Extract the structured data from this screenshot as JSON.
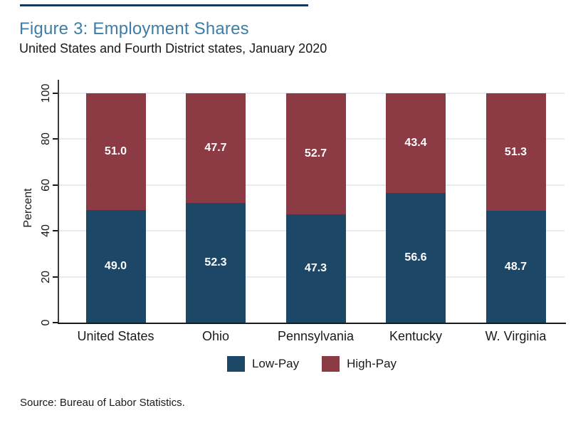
{
  "page": {
    "title": "Figure 3: Employment Shares",
    "subtitle": "United States and Fourth District states, January 2020",
    "source": "Source: Bureau of Labor Statistics.",
    "title_color": "#3e7da7",
    "accent_rule_color": "#17365a"
  },
  "chart_data": {
    "type": "bar",
    "stacked": true,
    "title": "Figure 3: Employment Shares",
    "subtitle": "United States and Fourth District states, January 2020",
    "categories": [
      "United States",
      "Ohio",
      "Pennsylvania",
      "Kentucky",
      "W. Virginia"
    ],
    "series": [
      {
        "name": "Low-Pay",
        "color": "#1d4767",
        "values": [
          49.0,
          52.3,
          47.3,
          56.6,
          48.7
        ]
      },
      {
        "name": "High-Pay",
        "color": "#8c3a44",
        "values": [
          51.0,
          47.7,
          52.7,
          43.4,
          51.3
        ]
      }
    ],
    "xlabel": "",
    "ylabel": "Percent",
    "ylim": [
      0,
      100
    ],
    "yticks": [
      0,
      20,
      40,
      60,
      80,
      100
    ],
    "grid": true,
    "grid_color": "#e6ecf2",
    "value_label_color": "#ffffff",
    "legend_position": "bottom"
  }
}
